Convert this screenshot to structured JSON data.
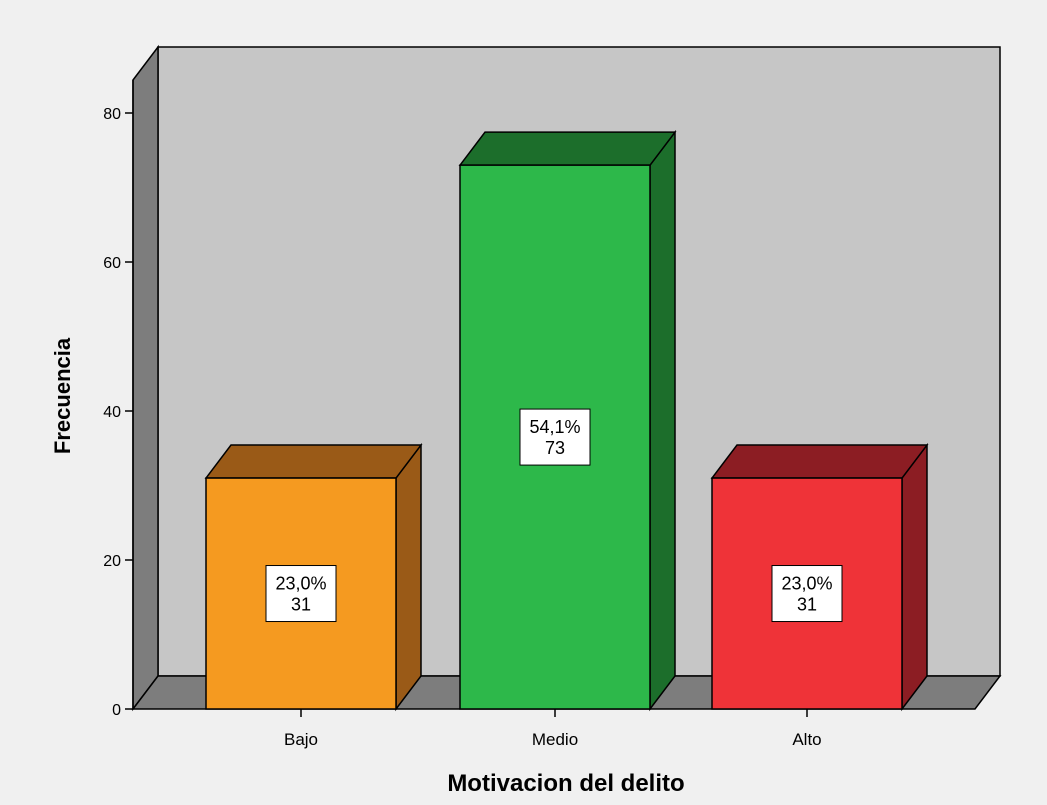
{
  "chart_data": {
    "type": "bar",
    "title": "",
    "xlabel": "Motivacion del delito",
    "ylabel": "Frecuencia",
    "ylim": [
      0,
      80
    ],
    "yticks": [
      0,
      20,
      40,
      60,
      80
    ],
    "categories": [
      "Bajo",
      "Medio",
      "Alto"
    ],
    "values": [
      31,
      73,
      31
    ],
    "percent_labels": [
      "23,0%",
      "54,1%",
      "23,0%"
    ],
    "count_labels": [
      "31",
      "73",
      "31"
    ],
    "grid": false,
    "legend": "none",
    "style": "3d",
    "colors": {
      "bars": [
        "#f59a20",
        "#2db84a",
        "#ef3338"
      ],
      "bar_sides": [
        "#9a5a17",
        "#1c6e2b",
        "#8c1d23"
      ],
      "bar_tops": [
        "#9a5a17",
        "#1c6e2b",
        "#8c1d23"
      ],
      "back_wall": "#c6c6c6",
      "side_wall": "#7d7d7d",
      "floor": "#7d7d7d",
      "background": "#f0f0f0"
    }
  }
}
